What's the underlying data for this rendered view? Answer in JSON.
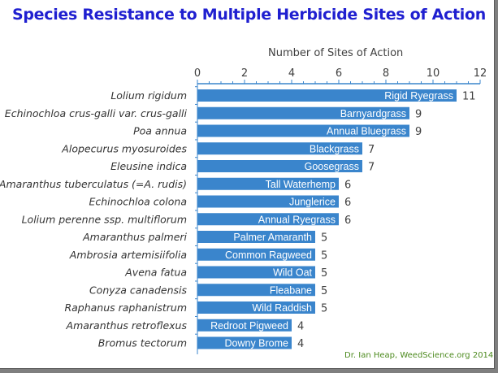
{
  "chart_data": {
    "type": "bar",
    "orientation": "horizontal",
    "title": "Species Resistance to Multiple Herbicide Sites of Action",
    "xlabel": "Number of Sites of Action",
    "xlim": [
      0,
      12
    ],
    "xticks": [
      "0",
      "2",
      "4",
      "6",
      "8",
      "10",
      "12"
    ],
    "categories": [
      "Lolium rigidum",
      "Echinochloa crus-galli var. crus-galli",
      "Poa annua",
      "Alopecurus myosuroides",
      "Eleusine indica",
      "Amaranthus tuberculatus (=A. rudis)",
      "Echinochloa colona",
      "Lolium perenne ssp. multiflorum",
      "Amaranthus palmeri",
      "Ambrosia artemisiifolia",
      "Avena fatua",
      "Conyza canadensis",
      "Raphanus raphanistrum",
      "Amaranthus retroflexus",
      "Bromus tectorum"
    ],
    "common_names": [
      "Rigid Ryegrass",
      "Barnyardgrass",
      "Annual Bluegrass",
      "Blackgrass",
      "Goosegrass",
      "Tall Waterhemp",
      "Junglerice",
      "Annual Ryegrass",
      "Palmer Amaranth",
      "Common Ragweed",
      "Wild Oat",
      "Fleabane",
      "Wild Raddish",
      "Redroot Pigweed",
      "Downy Brome"
    ],
    "values": [
      11,
      9,
      9,
      7,
      7,
      6,
      6,
      6,
      5,
      5,
      5,
      5,
      5,
      4,
      4
    ],
    "bar_color": "#3a85cc",
    "axis_color": "#3a85cc",
    "grid": false
  },
  "credit": "Dr. Ian Heap, WeedScience.org 2014",
  "colors": {
    "title": "#1f1fd0",
    "credit": "#4c8a1e",
    "frame": "#7f7f7f"
  }
}
